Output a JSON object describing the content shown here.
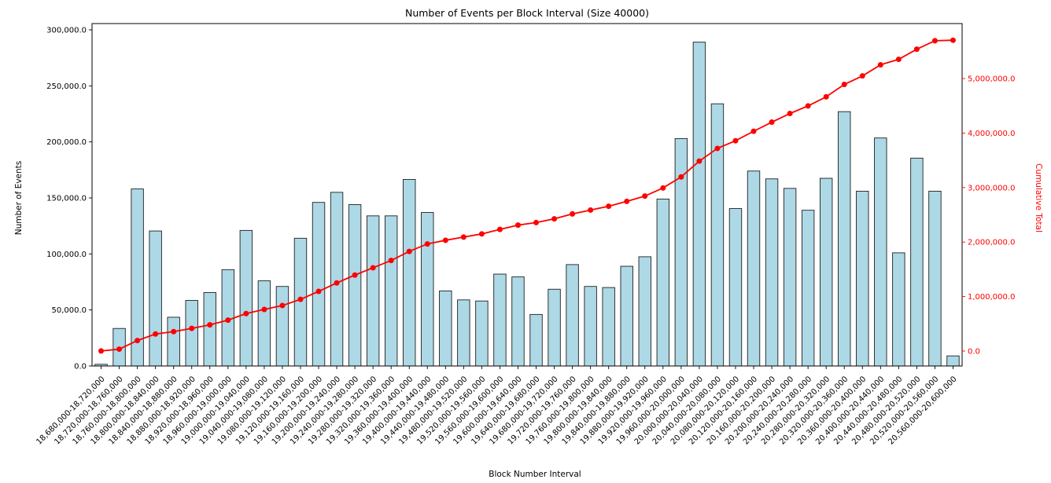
{
  "colors": {
    "bar_fill": "#add8e6",
    "bar_edge": "#1f1f1f",
    "line": "#ff0000",
    "axis_text": "#000000",
    "right_axis_text": "#ff0000",
    "spine": "#000000",
    "background": "#ffffff"
  },
  "chart_data": {
    "type": "bar",
    "subtype": "bar-with-cumulative-line-dual-axis",
    "title": "Number of Events per Block Interval (Size 40000)",
    "xlabel": "Block Number Interval",
    "grid": false,
    "legend": false,
    "x_tick_rotation_deg": 45,
    "categories": [
      "18,680,000-18,720,000",
      "18,720,000-18,760,000",
      "18,760,000-18,800,000",
      "18,800,000-18,840,000",
      "18,840,000-18,880,000",
      "18,880,000-18,920,000",
      "18,920,000-18,960,000",
      "18,960,000-19,000,000",
      "19,000,000-19,040,000",
      "19,040,000-19,080,000",
      "19,080,000-19,120,000",
      "19,120,000-19,160,000",
      "19,160,000-19,200,000",
      "19,200,000-19,240,000",
      "19,240,000-19,280,000",
      "19,280,000-19,320,000",
      "19,320,000-19,360,000",
      "19,360,000-19,400,000",
      "19,400,000-19,440,000",
      "19,440,000-19,480,000",
      "19,480,000-19,520,000",
      "19,520,000-19,560,000",
      "19,560,000-19,600,000",
      "19,600,000-19,640,000",
      "19,640,000-19,680,000",
      "19,680,000-19,720,000",
      "19,720,000-19,760,000",
      "19,760,000-19,800,000",
      "19,800,000-19,840,000",
      "19,840,000-19,880,000",
      "19,880,000-19,920,000",
      "19,920,000-19,960,000",
      "19,960,000-20,000,000",
      "20,000,000-20,040,000",
      "20,040,000-20,080,000",
      "20,080,000-20,120,000",
      "20,120,000-20,160,000",
      "20,160,000-20,200,000",
      "20,200,000-20,240,000",
      "20,240,000-20,280,000",
      "20,280,000-20,320,000",
      "20,320,000-20,360,000",
      "20,360,000-20,400,000",
      "20,400,000-20,440,000",
      "20,440,000-20,480,000",
      "20,480,000-20,520,000",
      "20,520,000-20,560,000",
      "20,560,000-20,600,000"
    ],
    "series": [
      {
        "name": "Number of Events",
        "type": "bar",
        "axis": "left",
        "color": "#add8e6",
        "values": [
          1500,
          33500,
          158000,
          120500,
          43500,
          58500,
          65500,
          86000,
          121000,
          76000,
          71000,
          114000,
          146000,
          155000,
          144000,
          134000,
          134000,
          166500,
          137000,
          67000,
          59000,
          58000,
          82000,
          79500,
          46000,
          68500,
          90500,
          71000,
          70000,
          89000,
          97500,
          149000,
          203000,
          289000,
          234000,
          140500,
          174000,
          167000,
          158500,
          139000,
          167500,
          227000,
          156000,
          203500,
          101000,
          185500,
          156000,
          9000
        ]
      },
      {
        "name": "Cumulative Total",
        "type": "line",
        "axis": "right",
        "color": "#ff0000",
        "values": [
          1500,
          35000,
          193000,
          313500,
          357000,
          415500,
          481000,
          567000,
          688000,
          764000,
          835000,
          949000,
          1095000,
          1250000,
          1394000,
          1528000,
          1662000,
          1828500,
          1965500,
          2032500,
          2091500,
          2149500,
          2231500,
          2311000,
          2357000,
          2425500,
          2516000,
          2587000,
          2657000,
          2746000,
          2843500,
          2992500,
          3195500,
          3484500,
          3718500,
          3859000,
          4033000,
          4200000,
          4358500,
          4497500,
          4665000,
          4892000,
          5048000,
          5251500,
          5352500,
          5538000,
          5694000,
          5703000
        ]
      }
    ],
    "left_axis": {
      "label": "Number of Events",
      "min": 0,
      "max": 300000,
      "ticks": [
        {
          "value": 0,
          "label": "0.0"
        },
        {
          "value": 50000,
          "label": "50,000.0"
        },
        {
          "value": 100000,
          "label": "100,000.0"
        },
        {
          "value": 150000,
          "label": "150,000.0"
        },
        {
          "value": 200000,
          "label": "200,000.0"
        },
        {
          "value": 250000,
          "label": "250,000.0"
        },
        {
          "value": 300000,
          "label": "300,000.0"
        }
      ]
    },
    "right_axis": {
      "label": "Cumulative Total",
      "min": 0,
      "tick_max": 5000000,
      "ticks": [
        {
          "value": 0,
          "label": "0.0"
        },
        {
          "value": 1000000,
          "label": "1,000,000.0"
        },
        {
          "value": 2000000,
          "label": "2,000,000.0"
        },
        {
          "value": 3000000,
          "label": "3,000,000.0"
        },
        {
          "value": 4000000,
          "label": "4,000,000.0"
        },
        {
          "value": 5000000,
          "label": "5,000,000.0"
        }
      ]
    }
  }
}
